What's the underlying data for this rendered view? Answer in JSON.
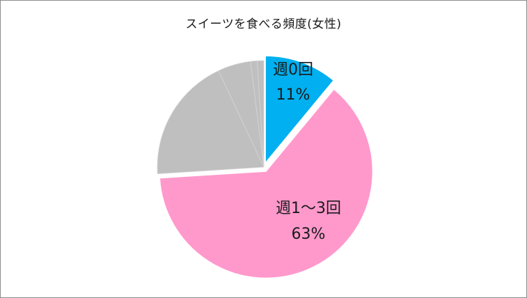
{
  "chart_data": {
    "type": "pie",
    "title": "スイーツを食べる頻度(女性)",
    "slices": [
      {
        "label": "週0回",
        "value": 11,
        "value_label": "11%",
        "color": "#00b0f0",
        "exploded": true
      },
      {
        "label": "週1～3回",
        "value": 63,
        "value_label": "63%",
        "color": "#ff99cc",
        "exploded": true
      },
      {
        "label": "",
        "value": 19,
        "value_label": "",
        "color": "#bfbfbf",
        "exploded": false
      },
      {
        "label": "",
        "value": 5,
        "value_label": "",
        "color": "#bfbfbf",
        "exploded": false
      },
      {
        "label": "",
        "value": 1,
        "value_label": "",
        "color": "#bfbfbf",
        "exploded": false
      },
      {
        "label": "",
        "value": 1,
        "value_label": "",
        "color": "#bfbfbf",
        "exploded": false
      }
    ],
    "start_angle_deg": 0,
    "direction": "clockwise",
    "legend": "none"
  }
}
